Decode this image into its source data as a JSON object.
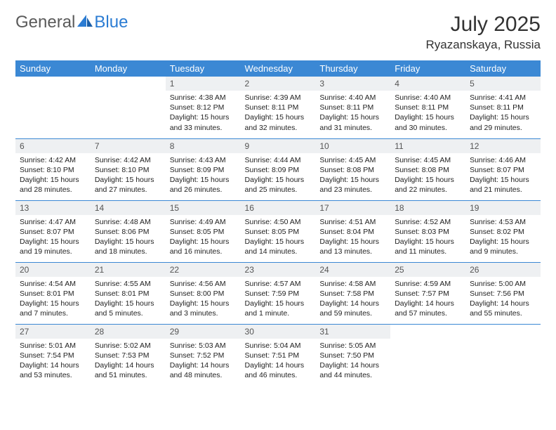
{
  "logo": {
    "general": "General",
    "blue": "Blue"
  },
  "title": "July 2025",
  "location": "Ryazanskaya, Russia",
  "colors": {
    "header_bg": "#3b88d4",
    "header_fg": "#ffffff",
    "daynum_bg": "#eef0f2",
    "daynum_fg": "#555555",
    "rule": "#3b88d4",
    "logo_gray": "#5a5a5a",
    "logo_blue": "#2b7cd3"
  },
  "weekdays": [
    "Sunday",
    "Monday",
    "Tuesday",
    "Wednesday",
    "Thursday",
    "Friday",
    "Saturday"
  ],
  "weeks": [
    [
      null,
      null,
      {
        "n": "1",
        "sr": "4:38 AM",
        "ss": "8:12 PM",
        "dl": "15 hours and 33 minutes."
      },
      {
        "n": "2",
        "sr": "4:39 AM",
        "ss": "8:11 PM",
        "dl": "15 hours and 32 minutes."
      },
      {
        "n": "3",
        "sr": "4:40 AM",
        "ss": "8:11 PM",
        "dl": "15 hours and 31 minutes."
      },
      {
        "n": "4",
        "sr": "4:40 AM",
        "ss": "8:11 PM",
        "dl": "15 hours and 30 minutes."
      },
      {
        "n": "5",
        "sr": "4:41 AM",
        "ss": "8:11 PM",
        "dl": "15 hours and 29 minutes."
      }
    ],
    [
      {
        "n": "6",
        "sr": "4:42 AM",
        "ss": "8:10 PM",
        "dl": "15 hours and 28 minutes."
      },
      {
        "n": "7",
        "sr": "4:42 AM",
        "ss": "8:10 PM",
        "dl": "15 hours and 27 minutes."
      },
      {
        "n": "8",
        "sr": "4:43 AM",
        "ss": "8:09 PM",
        "dl": "15 hours and 26 minutes."
      },
      {
        "n": "9",
        "sr": "4:44 AM",
        "ss": "8:09 PM",
        "dl": "15 hours and 25 minutes."
      },
      {
        "n": "10",
        "sr": "4:45 AM",
        "ss": "8:08 PM",
        "dl": "15 hours and 23 minutes."
      },
      {
        "n": "11",
        "sr": "4:45 AM",
        "ss": "8:08 PM",
        "dl": "15 hours and 22 minutes."
      },
      {
        "n": "12",
        "sr": "4:46 AM",
        "ss": "8:07 PM",
        "dl": "15 hours and 21 minutes."
      }
    ],
    [
      {
        "n": "13",
        "sr": "4:47 AM",
        "ss": "8:07 PM",
        "dl": "15 hours and 19 minutes."
      },
      {
        "n": "14",
        "sr": "4:48 AM",
        "ss": "8:06 PM",
        "dl": "15 hours and 18 minutes."
      },
      {
        "n": "15",
        "sr": "4:49 AM",
        "ss": "8:05 PM",
        "dl": "15 hours and 16 minutes."
      },
      {
        "n": "16",
        "sr": "4:50 AM",
        "ss": "8:05 PM",
        "dl": "15 hours and 14 minutes."
      },
      {
        "n": "17",
        "sr": "4:51 AM",
        "ss": "8:04 PM",
        "dl": "15 hours and 13 minutes."
      },
      {
        "n": "18",
        "sr": "4:52 AM",
        "ss": "8:03 PM",
        "dl": "15 hours and 11 minutes."
      },
      {
        "n": "19",
        "sr": "4:53 AM",
        "ss": "8:02 PM",
        "dl": "15 hours and 9 minutes."
      }
    ],
    [
      {
        "n": "20",
        "sr": "4:54 AM",
        "ss": "8:01 PM",
        "dl": "15 hours and 7 minutes."
      },
      {
        "n": "21",
        "sr": "4:55 AM",
        "ss": "8:01 PM",
        "dl": "15 hours and 5 minutes."
      },
      {
        "n": "22",
        "sr": "4:56 AM",
        "ss": "8:00 PM",
        "dl": "15 hours and 3 minutes."
      },
      {
        "n": "23",
        "sr": "4:57 AM",
        "ss": "7:59 PM",
        "dl": "15 hours and 1 minute."
      },
      {
        "n": "24",
        "sr": "4:58 AM",
        "ss": "7:58 PM",
        "dl": "14 hours and 59 minutes."
      },
      {
        "n": "25",
        "sr": "4:59 AM",
        "ss": "7:57 PM",
        "dl": "14 hours and 57 minutes."
      },
      {
        "n": "26",
        "sr": "5:00 AM",
        "ss": "7:56 PM",
        "dl": "14 hours and 55 minutes."
      }
    ],
    [
      {
        "n": "27",
        "sr": "5:01 AM",
        "ss": "7:54 PM",
        "dl": "14 hours and 53 minutes."
      },
      {
        "n": "28",
        "sr": "5:02 AM",
        "ss": "7:53 PM",
        "dl": "14 hours and 51 minutes."
      },
      {
        "n": "29",
        "sr": "5:03 AM",
        "ss": "7:52 PM",
        "dl": "14 hours and 48 minutes."
      },
      {
        "n": "30",
        "sr": "5:04 AM",
        "ss": "7:51 PM",
        "dl": "14 hours and 46 minutes."
      },
      {
        "n": "31",
        "sr": "5:05 AM",
        "ss": "7:50 PM",
        "dl": "14 hours and 44 minutes."
      },
      null,
      null
    ]
  ],
  "labels": {
    "sunrise": "Sunrise:",
    "sunset": "Sunset:",
    "daylight": "Daylight:"
  }
}
